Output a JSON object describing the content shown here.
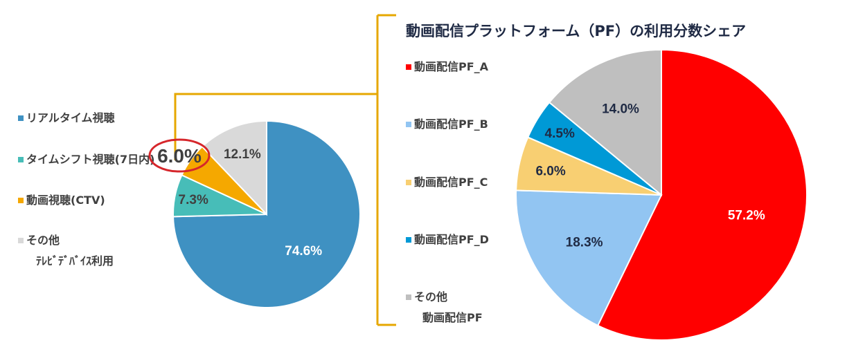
{
  "chart_data": [
    {
      "type": "pie",
      "title": "",
      "start": "12 o'clock, clockwise",
      "slices": [
        {
          "label": "リアルタイム視聴",
          "value": 74.6,
          "display": "74.6%",
          "color": "#3f91c2",
          "label_color": "#ffffff"
        },
        {
          "label": "タイムシフト視聴(7日内)",
          "value": 7.3,
          "display": "7.3%",
          "color": "#47bdb8",
          "label_color": "#404040"
        },
        {
          "label": "動画視聴(CTV)",
          "value": 6.0,
          "display": "6.0%",
          "color": "#f5a800",
          "label_color": "#404040",
          "callout": true
        },
        {
          "label": "その他テレビデバイス利用",
          "value": 12.1,
          "display": "12.1%",
          "color": "#d9d9d9",
          "label_color": "#404040"
        }
      ],
      "legend": [
        {
          "line1": "リアルタイム視聴",
          "line2": "",
          "color": "#3f91c2"
        },
        {
          "line1": "タイムシフト視聴(7日内)",
          "line2": "",
          "color": "#47bdb8"
        },
        {
          "line1": "動画視聴(CTV)",
          "line2": "",
          "color": "#f5a800"
        },
        {
          "line1": "その他",
          "line2": "ﾃﾚﾋﾞﾃﾞﾊﾞｲｽ利用",
          "color": "#d9d9d9"
        }
      ],
      "callout_text": "6.0%"
    },
    {
      "type": "pie",
      "title": "動画配信プラットフォーム（PF）の利用分数シェア",
      "start": "12 o'clock, clockwise",
      "slices": [
        {
          "label": "動画配信PF_A",
          "value": 57.2,
          "display": "57.2%",
          "color": "#ff0000",
          "label_color": "#ffffff"
        },
        {
          "label": "動画配信PF_B",
          "value": 18.3,
          "display": "18.3%",
          "color": "#92c5f2",
          "label_color": "#1f2a44"
        },
        {
          "label": "動画配信PF_C",
          "value": 6.0,
          "display": "6.0%",
          "color": "#f8cf72",
          "label_color": "#1f2a44"
        },
        {
          "label": "動画配信PF_D",
          "value": 4.5,
          "display": "4.5%",
          "color": "#0099d6",
          "label_color": "#1f2a44"
        },
        {
          "label": "その他動画配信PF",
          "value": 14.0,
          "display": "14.0%",
          "color": "#bfbfbf",
          "label_color": "#1f2a44"
        }
      ],
      "legend": [
        {
          "line1": "動画配信PF_A",
          "line2": "",
          "color": "#ff0000"
        },
        {
          "line1": "動画配信PF_B",
          "line2": "",
          "color": "#92c5f2"
        },
        {
          "line1": "動画配信PF_C",
          "line2": "",
          "color": "#f8cf72"
        },
        {
          "line1": "動画配信PF_D",
          "line2": "",
          "color": "#0099d6"
        },
        {
          "line1": "その他",
          "line2": "動画配信PF",
          "color": "#bfbfbf"
        }
      ]
    }
  ],
  "colors": {
    "bracket": "#e6a700",
    "callout_ring": "#d6262b"
  }
}
